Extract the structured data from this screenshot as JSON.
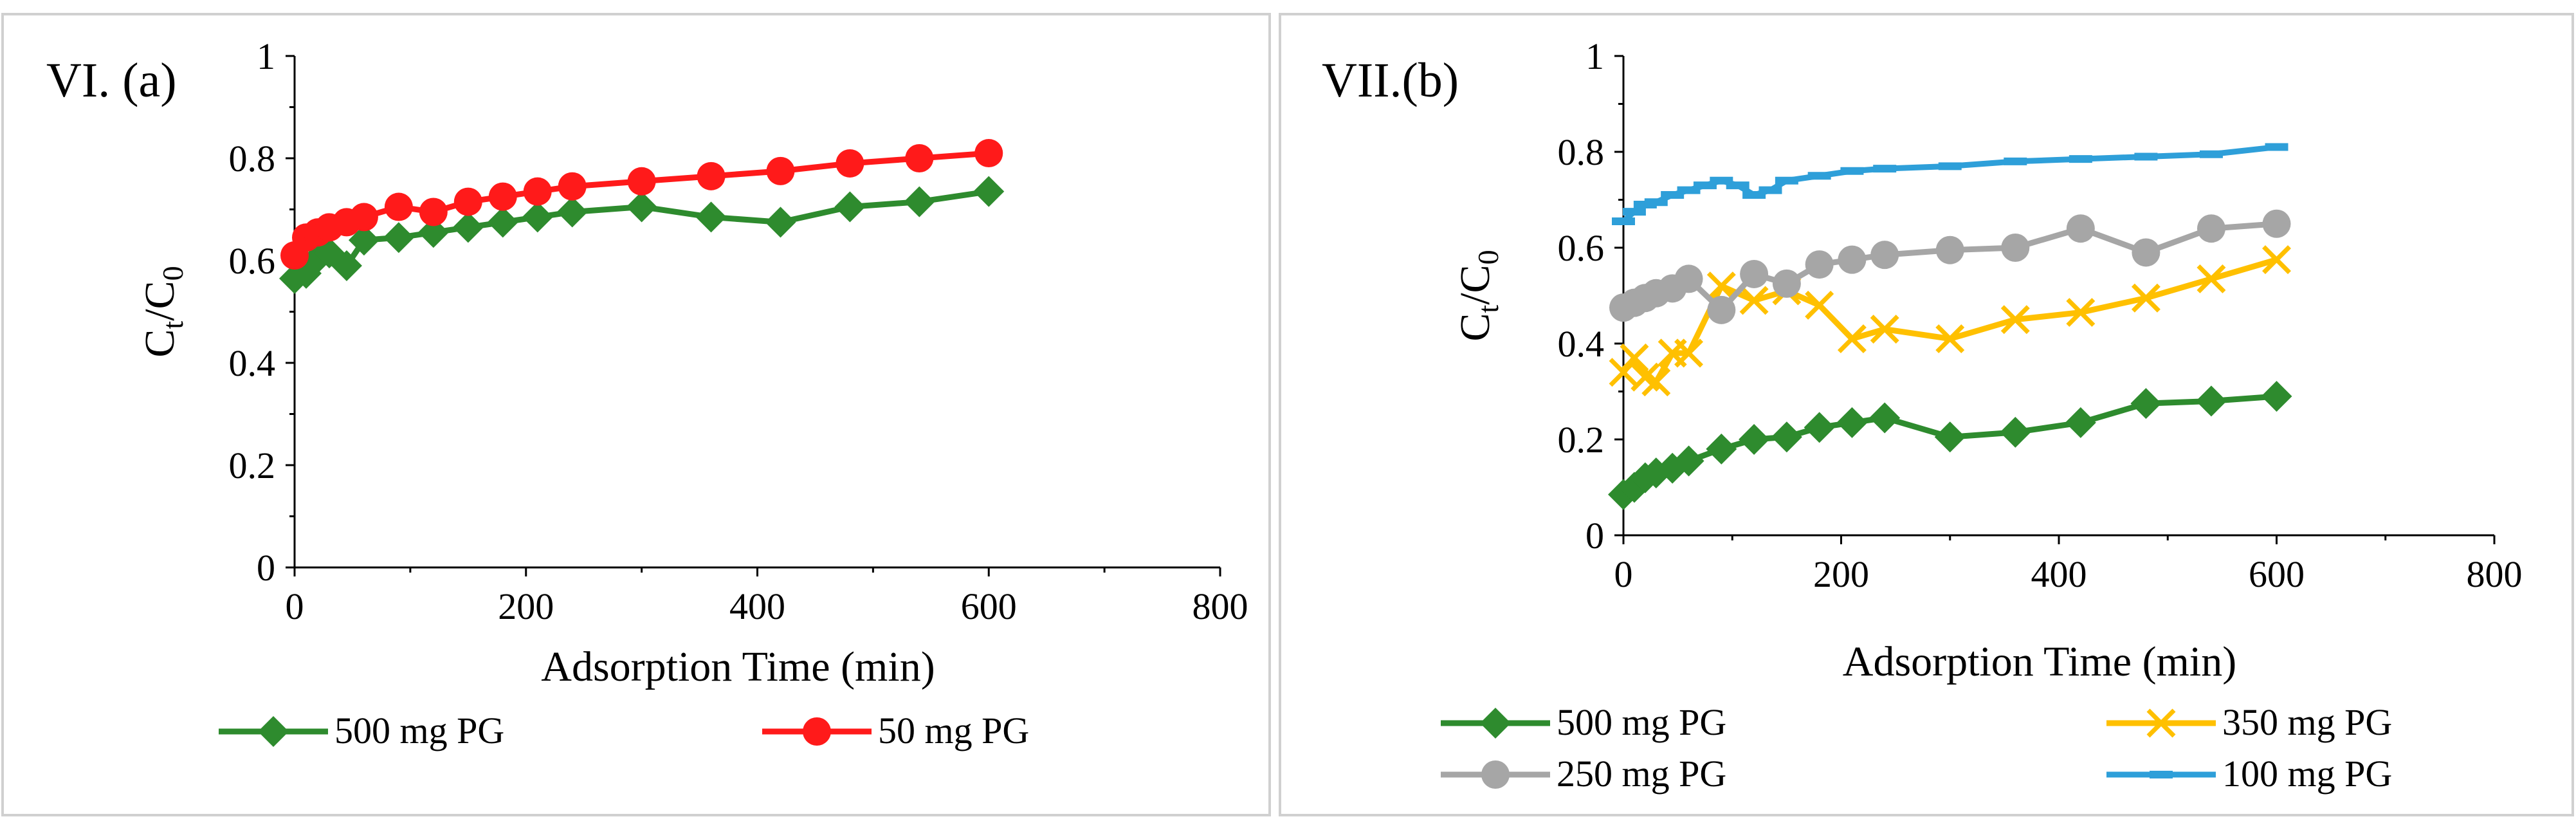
{
  "chart_data": [
    {
      "type": "line",
      "panel_label": "VI. (a)",
      "xlabel": "Adsorption Time (min)",
      "ylabel": {
        "main": "C",
        "sub1": "t",
        "sep": "/C",
        "sub2": "0"
      },
      "xlim": [
        0,
        800
      ],
      "ylim": [
        0,
        1
      ],
      "x_ticks": [
        "0",
        "200",
        "400",
        "600",
        "800"
      ],
      "y_ticks": [
        "0",
        "0.2",
        "0.4",
        "0.6",
        "0.8",
        "1"
      ],
      "series": [
        {
          "name": "500 mg PG",
          "color": "#2E8B2E",
          "marker": "diamond",
          "x": [
            0,
            10,
            20,
            30,
            45,
            60,
            90,
            120,
            150,
            180,
            210,
            240,
            300,
            360,
            420,
            480,
            540,
            600
          ],
          "y": [
            0.565,
            0.575,
            0.605,
            0.615,
            0.59,
            0.64,
            0.645,
            0.655,
            0.665,
            0.675,
            0.685,
            0.695,
            0.705,
            0.685,
            0.675,
            0.705,
            0.715,
            0.735
          ]
        },
        {
          "name": "50 mg PG",
          "color": "#FF1A1A",
          "marker": "circle",
          "x": [
            0,
            10,
            20,
            30,
            45,
            60,
            90,
            120,
            150,
            180,
            210,
            240,
            300,
            360,
            420,
            480,
            540,
            600
          ],
          "y": [
            0.61,
            0.645,
            0.655,
            0.665,
            0.675,
            0.685,
            0.705,
            0.695,
            0.715,
            0.725,
            0.735,
            0.745,
            0.755,
            0.765,
            0.775,
            0.79,
            0.8,
            0.81
          ]
        }
      ]
    },
    {
      "type": "line",
      "panel_label": "VII.(b)",
      "xlabel": "Adsorption Time (min)",
      "ylabel": {
        "main": "C",
        "sub1": "t",
        "sep": "/C",
        "sub2": "0"
      },
      "xlim": [
        0,
        800
      ],
      "ylim": [
        0,
        1
      ],
      "x_ticks": [
        "0",
        "200",
        "400",
        "600",
        "800"
      ],
      "y_ticks": [
        "0",
        "0.2",
        "0.4",
        "0.6",
        "0.8",
        "1"
      ],
      "series": [
        {
          "name": "500 mg PG",
          "color": "#2E8B2E",
          "marker": "diamond",
          "x": [
            0,
            10,
            20,
            30,
            45,
            60,
            90,
            120,
            150,
            180,
            210,
            240,
            300,
            360,
            420,
            480,
            540,
            600
          ],
          "y": [
            0.085,
            0.1,
            0.12,
            0.13,
            0.14,
            0.155,
            0.18,
            0.2,
            0.205,
            0.225,
            0.235,
            0.245,
            0.205,
            0.215,
            0.235,
            0.275,
            0.28,
            0.29
          ]
        },
        {
          "name": "350 mg PG",
          "color": "#FFC000",
          "marker": "x",
          "x": [
            0,
            10,
            20,
            30,
            45,
            60,
            90,
            120,
            150,
            180,
            210,
            240,
            300,
            360,
            420,
            480,
            540,
            600
          ],
          "y": [
            0.34,
            0.37,
            0.33,
            0.32,
            0.38,
            0.38,
            0.52,
            0.49,
            0.51,
            0.48,
            0.41,
            0.43,
            0.41,
            0.45,
            0.465,
            0.495,
            0.535,
            0.575
          ]
        },
        {
          "name": "250 mg PG",
          "color": "#A6A6A6",
          "marker": "circle",
          "x": [
            0,
            10,
            20,
            30,
            45,
            60,
            90,
            120,
            150,
            180,
            210,
            240,
            300,
            360,
            420,
            480,
            540,
            600
          ],
          "y": [
            0.475,
            0.485,
            0.495,
            0.505,
            0.515,
            0.535,
            0.47,
            0.545,
            0.525,
            0.565,
            0.575,
            0.585,
            0.595,
            0.6,
            0.64,
            0.59,
            0.64,
            0.65
          ]
        },
        {
          "name": "100 mg PG",
          "color": "#2E9FD9",
          "marker": "dash",
          "x": [
            0,
            10,
            20,
            30,
            45,
            60,
            75,
            90,
            105,
            120,
            135,
            150,
            180,
            210,
            240,
            300,
            360,
            420,
            480,
            540,
            600
          ],
          "y": [
            0.655,
            0.675,
            0.69,
            0.695,
            0.71,
            0.72,
            0.73,
            0.74,
            0.73,
            0.71,
            0.72,
            0.74,
            0.75,
            0.76,
            0.765,
            0.77,
            0.78,
            0.785,
            0.79,
            0.795,
            0.81
          ]
        }
      ]
    }
  ]
}
